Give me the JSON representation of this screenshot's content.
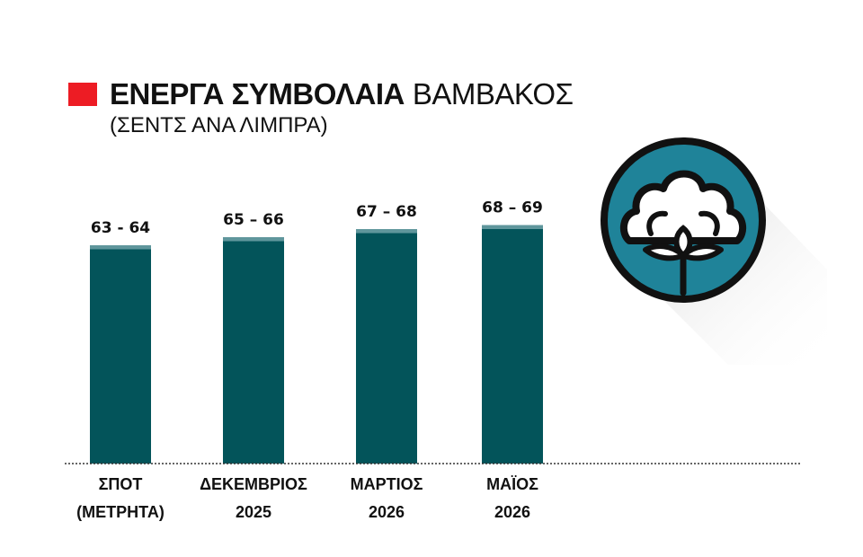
{
  "header": {
    "title_bold": "ΕΝΕΡΓΑ ΣΥΜΒΟΛΑΙΑ",
    "title_light": "ΒΑΜΒΑΚΟΣ",
    "subtitle": "(ΣΕΝΤΣ ΑΝΑ ΛΙΜΠΡΑ)"
  },
  "colors": {
    "marker": "#ed1c24",
    "bar_base": "#03545a",
    "bar_range": "#5f969c",
    "icon_circle": "#1f8399"
  },
  "icon": "cotton-boll-icon",
  "chart_data": {
    "type": "bar",
    "style": "stacked-range",
    "ylim": [
      0,
      70
    ],
    "categories": [
      [
        "ΣΠΟΤ",
        "(ΜΕΤΡΗΤΑ)"
      ],
      [
        "ΔΕΚΕΜΒΡΙΟΣ",
        "2025"
      ],
      [
        "ΜΑΡΤΙΟΣ",
        "2026"
      ],
      [
        "ΜΑΪΟΣ",
        "2026"
      ]
    ],
    "low": [
      63,
      65,
      67,
      68
    ],
    "high": [
      64,
      66,
      68,
      69
    ],
    "labels": [
      "63 - 64",
      "65 – 66",
      "67 – 68",
      "68 – 69"
    ],
    "grid": false,
    "legend": "none"
  }
}
